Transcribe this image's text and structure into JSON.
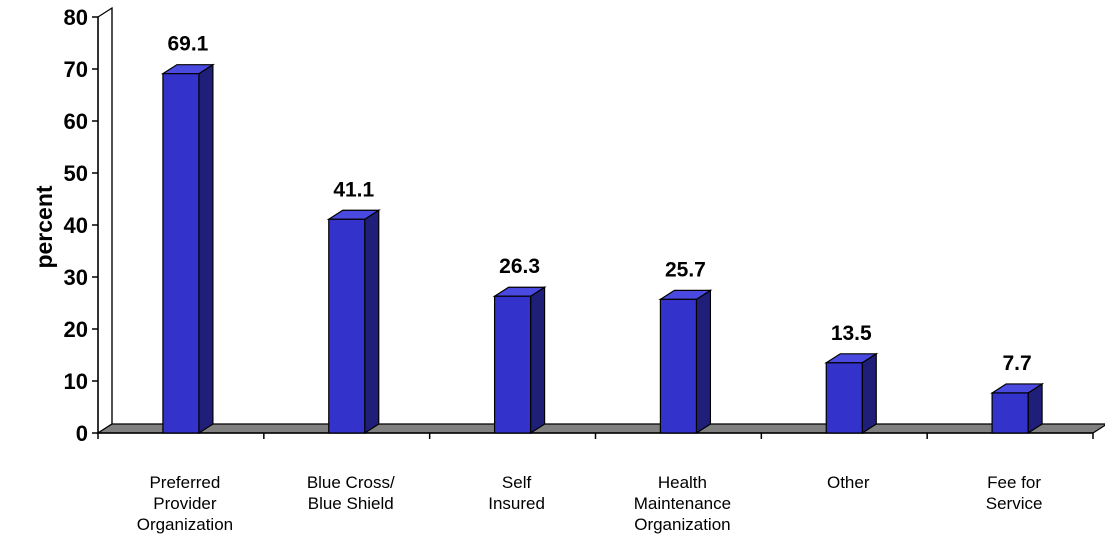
{
  "chart_data": {
    "type": "bar",
    "categories": [
      "Preferred Provider Organization",
      "Blue Cross/ Blue Shield",
      "Self Insured",
      "Health Maintenance Organization",
      "Other",
      "Fee for Service"
    ],
    "category_lines": [
      [
        "Preferred",
        "Provider",
        "Organization"
      ],
      [
        "Blue Cross/",
        "Blue Shield"
      ],
      [
        "Self",
        "Insured"
      ],
      [
        "Health",
        "Maintenance",
        "Organization"
      ],
      [
        "Other"
      ],
      [
        "Fee for",
        "Service"
      ]
    ],
    "values": [
      69.1,
      41.1,
      26.3,
      25.7,
      13.5,
      7.7
    ],
    "value_labels": [
      "69.1",
      "41.1",
      "26.3",
      "25.7",
      "13.5",
      "7.7"
    ],
    "title": "",
    "xlabel": "",
    "ylabel": "percent",
    "ylim": [
      0,
      80
    ],
    "yticks": [
      "0",
      "10",
      "20",
      "30",
      "40",
      "50",
      "60",
      "70",
      "80"
    ],
    "grid": false,
    "legend": "none",
    "colors": {
      "bar_front": "#3333cc",
      "bar_side": "#1f1f7a",
      "bar_top": "#4a4ae0",
      "floor": "#808080"
    }
  }
}
